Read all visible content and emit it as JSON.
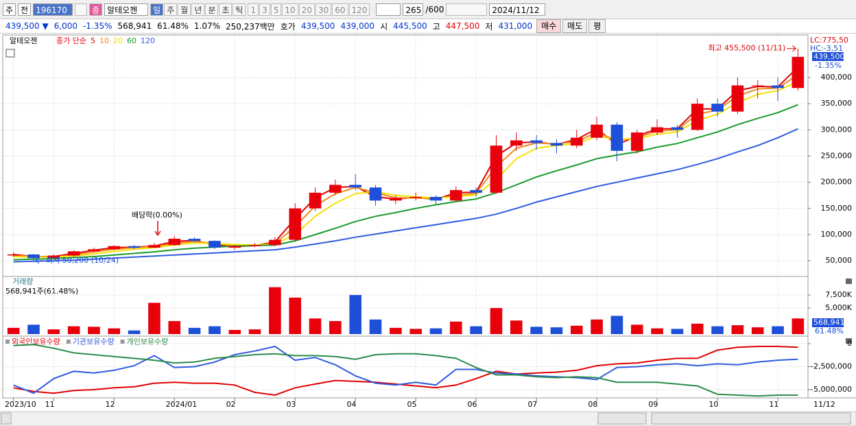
{
  "toolbar": {
    "market": "주",
    "mode": "전",
    "code": "196170",
    "badge": "종",
    "name": "알테오젠",
    "periods": [
      "일",
      "주",
      "월",
      "년",
      "분",
      "초",
      "틱"
    ],
    "intervals": [
      "1",
      "3",
      "5",
      "10",
      "20",
      "30",
      "60",
      "120"
    ],
    "count": "265",
    "max": "/600",
    "date": "2024/11/12"
  },
  "quote": {
    "items": [
      {
        "text": "439,500 ▼",
        "color": "#0033cc"
      },
      {
        "text": "6,000",
        "color": "#0033cc"
      },
      {
        "text": "-1.35%",
        "color": "#0033cc"
      },
      {
        "text": "568,941",
        "color": "#000000"
      },
      {
        "text": "61.48%",
        "color": "#000000"
      },
      {
        "text": "1.07%",
        "color": "#000000"
      },
      {
        "text": "250,237백만",
        "color": "#000000"
      },
      {
        "text": "호가",
        "color": "#000000"
      },
      {
        "text": "439,500",
        "color": "#0033cc"
      },
      {
        "text": "439,000",
        "color": "#0033cc"
      },
      {
        "text": "시",
        "color": "#000000"
      },
      {
        "text": "445,500",
        "color": "#0033cc"
      },
      {
        "text": "고",
        "color": "#000000"
      },
      {
        "text": "447,500",
        "color": "#e00000"
      },
      {
        "text": "저",
        "color": "#000000"
      },
      {
        "text": "431,000",
        "color": "#0033cc"
      }
    ],
    "buttons": [
      "매수",
      "매도",
      "평"
    ]
  },
  "chart_data": [
    {
      "type": "candlestick",
      "name": "알테오젠",
      "ma_label": "종가 단순",
      "up_color": "#e8000b",
      "down_color": "#1d4fd8",
      "grid": true,
      "open": [
        60000,
        62000,
        55000,
        60000,
        68000,
        72000,
        78000,
        75000,
        80000,
        92000,
        88000,
        75000,
        78000,
        80000,
        90000,
        150000,
        180000,
        195000,
        190000,
        165000,
        170000,
        172000,
        165000,
        185000,
        180000,
        270000,
        280000,
        275000,
        270000,
        285000,
        310000,
        260000,
        295000,
        305000,
        300000,
        350000,
        335000,
        385000,
        385000,
        380000
      ],
      "high": [
        66000,
        63000,
        62000,
        70000,
        75000,
        80000,
        80000,
        84000,
        97000,
        95000,
        89000,
        80000,
        84000,
        95000,
        160000,
        190000,
        205000,
        215000,
        195000,
        175000,
        180000,
        175000,
        192000,
        190000,
        290000,
        295000,
        290000,
        282000,
        300000,
        325000,
        315000,
        300000,
        320000,
        310000,
        360000,
        360000,
        400000,
        395000,
        400000,
        455500
      ],
      "low": [
        57000,
        50200,
        53000,
        58000,
        66000,
        70000,
        72000,
        74000,
        79000,
        85000,
        72000,
        71000,
        76000,
        78000,
        88000,
        145000,
        175000,
        185000,
        155000,
        158000,
        165000,
        158000,
        163000,
        172000,
        178000,
        260000,
        262000,
        255000,
        265000,
        280000,
        240000,
        255000,
        290000,
        285000,
        298000,
        325000,
        330000,
        360000,
        355000,
        375000
      ],
      "close": [
        62000,
        55000,
        60000,
        68000,
        72000,
        78000,
        75000,
        80000,
        92000,
        88000,
        75000,
        78000,
        80000,
        90000,
        150000,
        180000,
        195000,
        190000,
        165000,
        170000,
        172000,
        165000,
        185000,
        180000,
        270000,
        280000,
        275000,
        270000,
        285000,
        310000,
        260000,
        295000,
        305000,
        300000,
        350000,
        335000,
        385000,
        385000,
        380000,
        439500
      ],
      "series": [
        {
          "name": "5",
          "color": "#e00000",
          "values": [
            62000,
            58000,
            58000,
            64000,
            70000,
            75000,
            76000,
            78000,
            87000,
            89000,
            80000,
            77000,
            79000,
            86000,
            130000,
            170000,
            190000,
            192000,
            172000,
            168000,
            171000,
            167000,
            180000,
            181000,
            250000,
            275000,
            277000,
            272000,
            282000,
            302000,
            272000,
            288000,
            302000,
            302000,
            340000,
            340000,
            375000,
            383000,
            382000,
            420000
          ]
        },
        {
          "name": "10",
          "color": "#f08a1c",
          "values": [
            60000,
            58000,
            57000,
            61000,
            67000,
            72000,
            75000,
            77000,
            83000,
            87000,
            83000,
            79000,
            79000,
            83000,
            115000,
            155000,
            178000,
            190000,
            180000,
            170000,
            170000,
            168000,
            175000,
            179000,
            230000,
            265000,
            275000,
            273000,
            278000,
            295000,
            280000,
            285000,
            298000,
            300000,
            330000,
            338000,
            365000,
            378000,
            380000,
            405000
          ]
        },
        {
          "name": "20",
          "color": "#f5e000",
          "values": [
            58000,
            57000,
            57000,
            59000,
            63000,
            68000,
            72000,
            75000,
            80000,
            84000,
            83000,
            81000,
            80000,
            82000,
            100000,
            135000,
            160000,
            178000,
            182000,
            175000,
            172000,
            170000,
            172000,
            176000,
            205000,
            245000,
            265000,
            270000,
            274000,
            288000,
            282000,
            283000,
            292000,
            296000,
            318000,
            330000,
            352000,
            368000,
            375000,
            392000
          ]
        },
        {
          "name": "60",
          "color": "#1a9a2a",
          "values": [
            52000,
            53000,
            54000,
            56000,
            58000,
            61000,
            64000,
            67000,
            71000,
            74000,
            76000,
            78000,
            79000,
            80000,
            88000,
            100000,
            112000,
            125000,
            135000,
            142000,
            150000,
            157000,
            163000,
            168000,
            180000,
            195000,
            210000,
            222000,
            233000,
            245000,
            252000,
            258000,
            267000,
            274000,
            285000,
            296000,
            310000,
            322000,
            333000,
            348000
          ]
        },
        {
          "name": "120",
          "color": "#2e5be0",
          "values": [
            48000,
            49000,
            50000,
            51000,
            53000,
            55000,
            57000,
            59000,
            61000,
            63000,
            65000,
            67000,
            69000,
            71000,
            76000,
            82000,
            88000,
            95000,
            101000,
            107000,
            113000,
            119000,
            125000,
            131000,
            139000,
            150000,
            162000,
            172000,
            182000,
            192000,
            200000,
            208000,
            216000,
            224000,
            234000,
            245000,
            258000,
            270000,
            285000,
            302000
          ]
        }
      ],
      "ylim": [
        20000,
        480000
      ],
      "yticks": [
        {
          "value": 50000,
          "label": "50,000"
        },
        {
          "value": 100000,
          "label": "100,000"
        },
        {
          "value": 150000,
          "label": "150,000"
        },
        {
          "value": 200000,
          "label": "200,000"
        },
        {
          "value": 250000,
          "label": "250,000"
        },
        {
          "value": 300000,
          "label": "300,000"
        },
        {
          "value": 350000,
          "label": "350,000"
        },
        {
          "value": 400000,
          "label": "400,000"
        }
      ],
      "high_annotation": "최고 455,500 (11/11)",
      "low_annotation": "최저 50,200 (10/24)",
      "dividend_annotation": "배당락(0.00%)",
      "lc_label": "LC:775,50",
      "hc_label": "HC:-3,51",
      "current_label": "439,500",
      "change_label": "-1.35%"
    },
    {
      "type": "bar",
      "title": "거래량",
      "subtitle": "568,941주(61.48%)",
      "values": [
        1200000,
        1800000,
        900000,
        1500000,
        1400000,
        1100000,
        700000,
        6000000,
        2500000,
        1200000,
        1500000,
        800000,
        900000,
        9000000,
        7000000,
        3000000,
        2500000,
        7500000,
        2800000,
        1200000,
        1000000,
        1100000,
        2400000,
        1500000,
        5000000,
        2600000,
        1400000,
        1300000,
        1600000,
        2800000,
        3500000,
        1800000,
        1100000,
        1000000,
        2000000,
        1500000,
        1700000,
        1300000,
        1500000,
        3000000
      ],
      "ylim": [
        0,
        10800000
      ],
      "yticks": [
        {
          "value": 5000000,
          "label": "5,000K"
        },
        {
          "value": 7500000,
          "label": "7,500K"
        }
      ],
      "current_label": "568,941",
      "ratio_label": "61.48%"
    },
    {
      "type": "line",
      "categories": [
        "2023/10",
        null,
        "11",
        null,
        null,
        "12",
        null,
        null,
        "2024/01",
        null,
        null,
        "02",
        null,
        null,
        "03",
        null,
        null,
        "04",
        null,
        null,
        "05",
        null,
        null,
        "06",
        null,
        null,
        "07",
        null,
        null,
        "08",
        null,
        null,
        "09",
        null,
        null,
        "10",
        null,
        null,
        "11",
        null
      ],
      "series": [
        {
          "name": "외국인보유수량",
          "color": "#e00000",
          "values": [
            -4800000,
            -5200000,
            -5400000,
            -5100000,
            -5000000,
            -4800000,
            -4700000,
            -4300000,
            -4200000,
            -4300000,
            -4300000,
            -4500000,
            -5300000,
            -5600000,
            -4800000,
            -4400000,
            -4000000,
            -4100000,
            -4200000,
            -4400000,
            -4600000,
            -4800000,
            -4500000,
            -3800000,
            -3000000,
            -3300000,
            -3200000,
            -3100000,
            -2900000,
            -2400000,
            -2200000,
            -2100000,
            -1800000,
            -1600000,
            -1600000,
            -700000,
            -400000,
            -300000,
            -300000,
            -400000
          ]
        },
        {
          "name": "기관보유수량",
          "color": "#2e5be0",
          "values": [
            -4500000,
            -5400000,
            -3800000,
            -3000000,
            -3200000,
            -2900000,
            -2400000,
            -1300000,
            -2600000,
            -2500000,
            -2000000,
            -1200000,
            -800000,
            -300000,
            -1800000,
            -1500000,
            -2300000,
            -3500000,
            -4300000,
            -4500000,
            -4200000,
            -4500000,
            -2800000,
            -2800000,
            -3200000,
            -3300000,
            -3500000,
            -3600000,
            -3700000,
            -3900000,
            -2600000,
            -2500000,
            -2300000,
            -2200000,
            -2400000,
            -2200000,
            -2300000,
            -2000000,
            -1800000,
            -1700000
          ]
        },
        {
          "name": "개인보유수량",
          "color": "#2b8a4a",
          "values": [
            -200000,
            -100000,
            -500000,
            -1000000,
            -1200000,
            -1400000,
            -1600000,
            -1800000,
            -2100000,
            -2000000,
            -1600000,
            -1400000,
            -1200000,
            -1100000,
            -1300000,
            -1300000,
            -1400000,
            -1700000,
            -1200000,
            -1100000,
            -1100000,
            -1300000,
            -1600000,
            -2600000,
            -3400000,
            -3400000,
            -3600000,
            -3700000,
            -3600000,
            -3700000,
            -4200000,
            -4200000,
            -4200000,
            -4400000,
            -4600000,
            -5500000,
            -5600000,
            -5700000,
            -5600000,
            -5600000
          ]
        }
      ],
      "ylim": [
        -5750000,
        670000
      ],
      "yticks": [
        0,
        {
          "value": -2500000,
          "label": "-2,500,000"
        },
        {
          "value": -5000000,
          "label": "-5,000,000"
        }
      ],
      "last_date": "11/12"
    }
  ]
}
